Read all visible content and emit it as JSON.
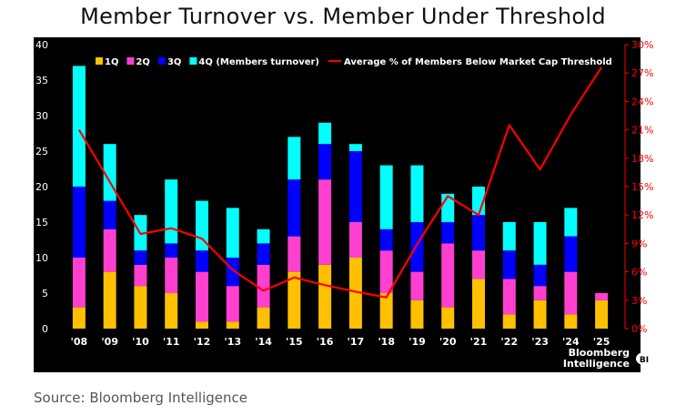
{
  "title": "Member Turnover vs. Member Under Threshold",
  "source": "Source: Bloomberg Intelligence",
  "branding": {
    "line1": "Bloomberg",
    "line2": "Intelligence",
    "badge": "BI"
  },
  "colors": {
    "q1": "#ffc000",
    "q2": "#ff3fcf",
    "q3": "#0000ff",
    "q4": "#00ffff",
    "line": "#ff0000",
    "background": "#000000",
    "axis_text": "#ffffff",
    "right_axis_text": "#ff0000"
  },
  "chart_data": {
    "type": "bar",
    "stacked": true,
    "categories": [
      "'08",
      "'09",
      "'10",
      "'11",
      "'12",
      "'13",
      "'14",
      "'15",
      "'16",
      "'17",
      "'18",
      "'19",
      "'20",
      "'21",
      "'22",
      "'23",
      "'24",
      "'25"
    ],
    "series": [
      {
        "name": "1Q",
        "values": [
          3,
          8,
          6,
          5,
          1,
          1,
          3,
          8,
          9,
          10,
          5,
          4,
          3,
          7,
          2,
          4,
          2,
          4
        ]
      },
      {
        "name": "2Q",
        "values": [
          7,
          6,
          3,
          5,
          7,
          5,
          6,
          5,
          12,
          5,
          6,
          4,
          9,
          4,
          5,
          2,
          6,
          1
        ]
      },
      {
        "name": "3Q",
        "values": [
          10,
          4,
          2,
          2,
          3,
          4,
          3,
          8,
          5,
          10,
          3,
          7,
          3,
          5,
          4,
          3,
          5,
          0
        ]
      },
      {
        "name": "4Q (Members turnover)",
        "values": [
          17,
          8,
          5,
          9,
          7,
          7,
          2,
          6,
          3,
          1,
          9,
          8,
          4,
          4,
          4,
          6,
          4,
          0
        ]
      }
    ],
    "line_series": {
      "name": "Average % of Members Below Market Cap Threshold",
      "axis": "right",
      "values": [
        21,
        15.5,
        10,
        10.6,
        9.5,
        6.2,
        4,
        5.4,
        4.6,
        3.9,
        3.3,
        8.9,
        14,
        12,
        21.5,
        16.8,
        22.6,
        27.6
      ]
    },
    "left_axis": {
      "min": 0,
      "max": 40,
      "ticks": [
        "0",
        "5",
        "10",
        "15",
        "20",
        "25",
        "30",
        "35",
        "40"
      ]
    },
    "right_axis": {
      "min": 0,
      "max": 30,
      "ticks": [
        "0%",
        "3%",
        "6%",
        "9%",
        "12%",
        "15%",
        "18%",
        "21%",
        "24%",
        "27%",
        "30%"
      ]
    },
    "legend_position": "top",
    "grid": false
  }
}
